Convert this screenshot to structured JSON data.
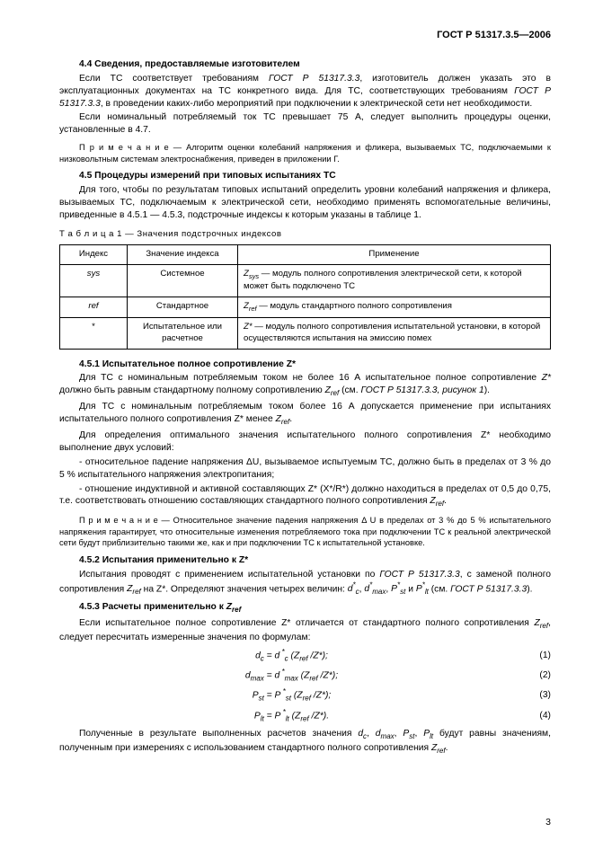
{
  "doc_id": "ГОСТ Р 51317.3.5—2006",
  "s44_title": "4.4  Сведения, предоставляемые изготовителем",
  "s44_p1a": "Если ТС соответствует требованиям ",
  "s44_p1_ref1": "ГОСТ Р 51317.3.3",
  "s44_p1b": ", изготовитель должен указать это в эксплуатационных документах на ТС конкретного вида. Для ТС, соответствующих требованиям ",
  "s44_p1_ref2": "ГОСТ Р 51317.3.3",
  "s44_p1c": ", в проведении каких-либо мероприятий при подключении к электрической сети нет необходимости.",
  "s44_p2": "Если номинальный потребляемый ток ТС превышает 75 А, следует выполнить процедуры оценки, установленные в 4.7.",
  "s44_note": "П р и м е ч а н и е — Алгоритм оценки колебаний напряжения и фликера, вызываемых ТС, подключаемыми к низковольтным системам электроснабжения, приведен в приложении Г.",
  "s45_title": "4.5  Процедуры измерений при типовых испытаниях ТС",
  "s45_p1": "Для того, чтобы по результатам типовых испытаний определить уровни колебаний напряжения и фликера, вызываемых ТС, подключаемым к электрической сети, необходимо применять вспомогательные величины, приведенные в 4.5.1 — 4.5.3, подстрочные индексы к которым указаны в таблице 1.",
  "tbl_caption": "Т а б л и ц а  1 — Значения подстрочных индексов",
  "th1": "Индекс",
  "th2": "Значение индекса",
  "th3": "Применение",
  "r1c1": "sys",
  "r1c2": "Системное",
  "r1c3a": "Z",
  "r1c3b": " — модуль полного сопротивления электрической сети, к которой может быть подключено ТС",
  "r2c1": "ref",
  "r2c2": "Стандартное",
  "r2c3a": "Z",
  "r2c3b": " — модуль стандартного полного сопротивления",
  "r3c1": "*",
  "r3c2": "Испытательное или расчетное",
  "r3c3a": "Z*",
  "r3c3b": " — модуль полного сопротивления испытательной установки, в которой осуществляются испытания на эмиссию помех",
  "s451_title": "4.5.1  Испытательное полное сопротивление Z*",
  "s451_p1a": "Для ТС с номинальным потребляемым током не более 16 А испытательное полное сопротивление ",
  "s451_p1b": " должно быть равным стандартному полному сопротивлению ",
  "s451_p1c": " (см. ",
  "s451_p1_ref": "ГОСТ Р 51317.3.3, рисунок 1",
  "s451_p1d": ").",
  "s451_p2a": "Для ТС с номинальным потребляемым током более 16 А допускается применение при испытаниях испытательного полного сопротивления Z* менее ",
  "s451_p2b": ".",
  "s451_p3": "Для определения оптимального значения испытательного полного сопротивления Z* необходимо выполнение двух условий:",
  "s451_b1": "- относительное падение напряжения ΔU, вызываемое испытуемым ТС, должно быть в пределах от 3 % до 5 % испытательного напряжения электропитания;",
  "s451_b2a": "- отношение индуктивной и активной составляющих  Z* (X*/R*) должно находиться в пределах от 0,5 до 0,75, т.е. соответствовать отношению составляющих стандартного полного сопротивления ",
  "s451_b2b": ".",
  "s451_note": "П р и м е ч а н и е — Относительное значение падения напряжения Δ U в пределах от 3 % до 5 % испытательного напряжения гарантирует, что относительные изменения потребляемого тока при подключении ТС к реальной электрической сети будут приблизительно такими же, как и при подключении ТС к испытательной установке.",
  "s452_title": "4.5.2  Испытания применительно к Z*",
  "s452_p1a": "Испытания проводят с применением испытательной установки по ",
  "s452_p1_ref1": "ГОСТ Р 51317.3.3",
  "s452_p1b": ", с заменой полного сопротивления ",
  "s452_p1c": " на Z*. Определяют значения четырех величин: ",
  "s452_p1d": " (см. ",
  "s452_p1_ref2": "ГОСТ Р 51317.3.3",
  "s452_p1e": ").",
  "s453_title": "4.5.3  Расчеты применительно к ",
  "s453_p1a": "Если испытательное полное сопротивление Z* отличается от стандартного полного сопротивления ",
  "s453_p1b": ", следует пересчитать измеренные значения по формулам:",
  "f1": "d꜀ =  d꜀* (Z_ref /Z*);",
  "f2": "d_max = d_max* (Z_ref /Z*);",
  "f3": "P_st = P_st* (Z_ref /Z*);",
  "f4": "P_lt = P_lt* (Z_ref /Z*).",
  "fn1": "(1)",
  "fn2": "(2)",
  "fn3": "(3)",
  "fn4": "(4)",
  "s453_p2a": "Полученные в результате выполненных расчетов значения ",
  "s453_p2b": " будут равны значениям, полученным при измерениях с использованием стандартного полного сопротивления ",
  "s453_p2c": ".",
  "page_num": "3"
}
